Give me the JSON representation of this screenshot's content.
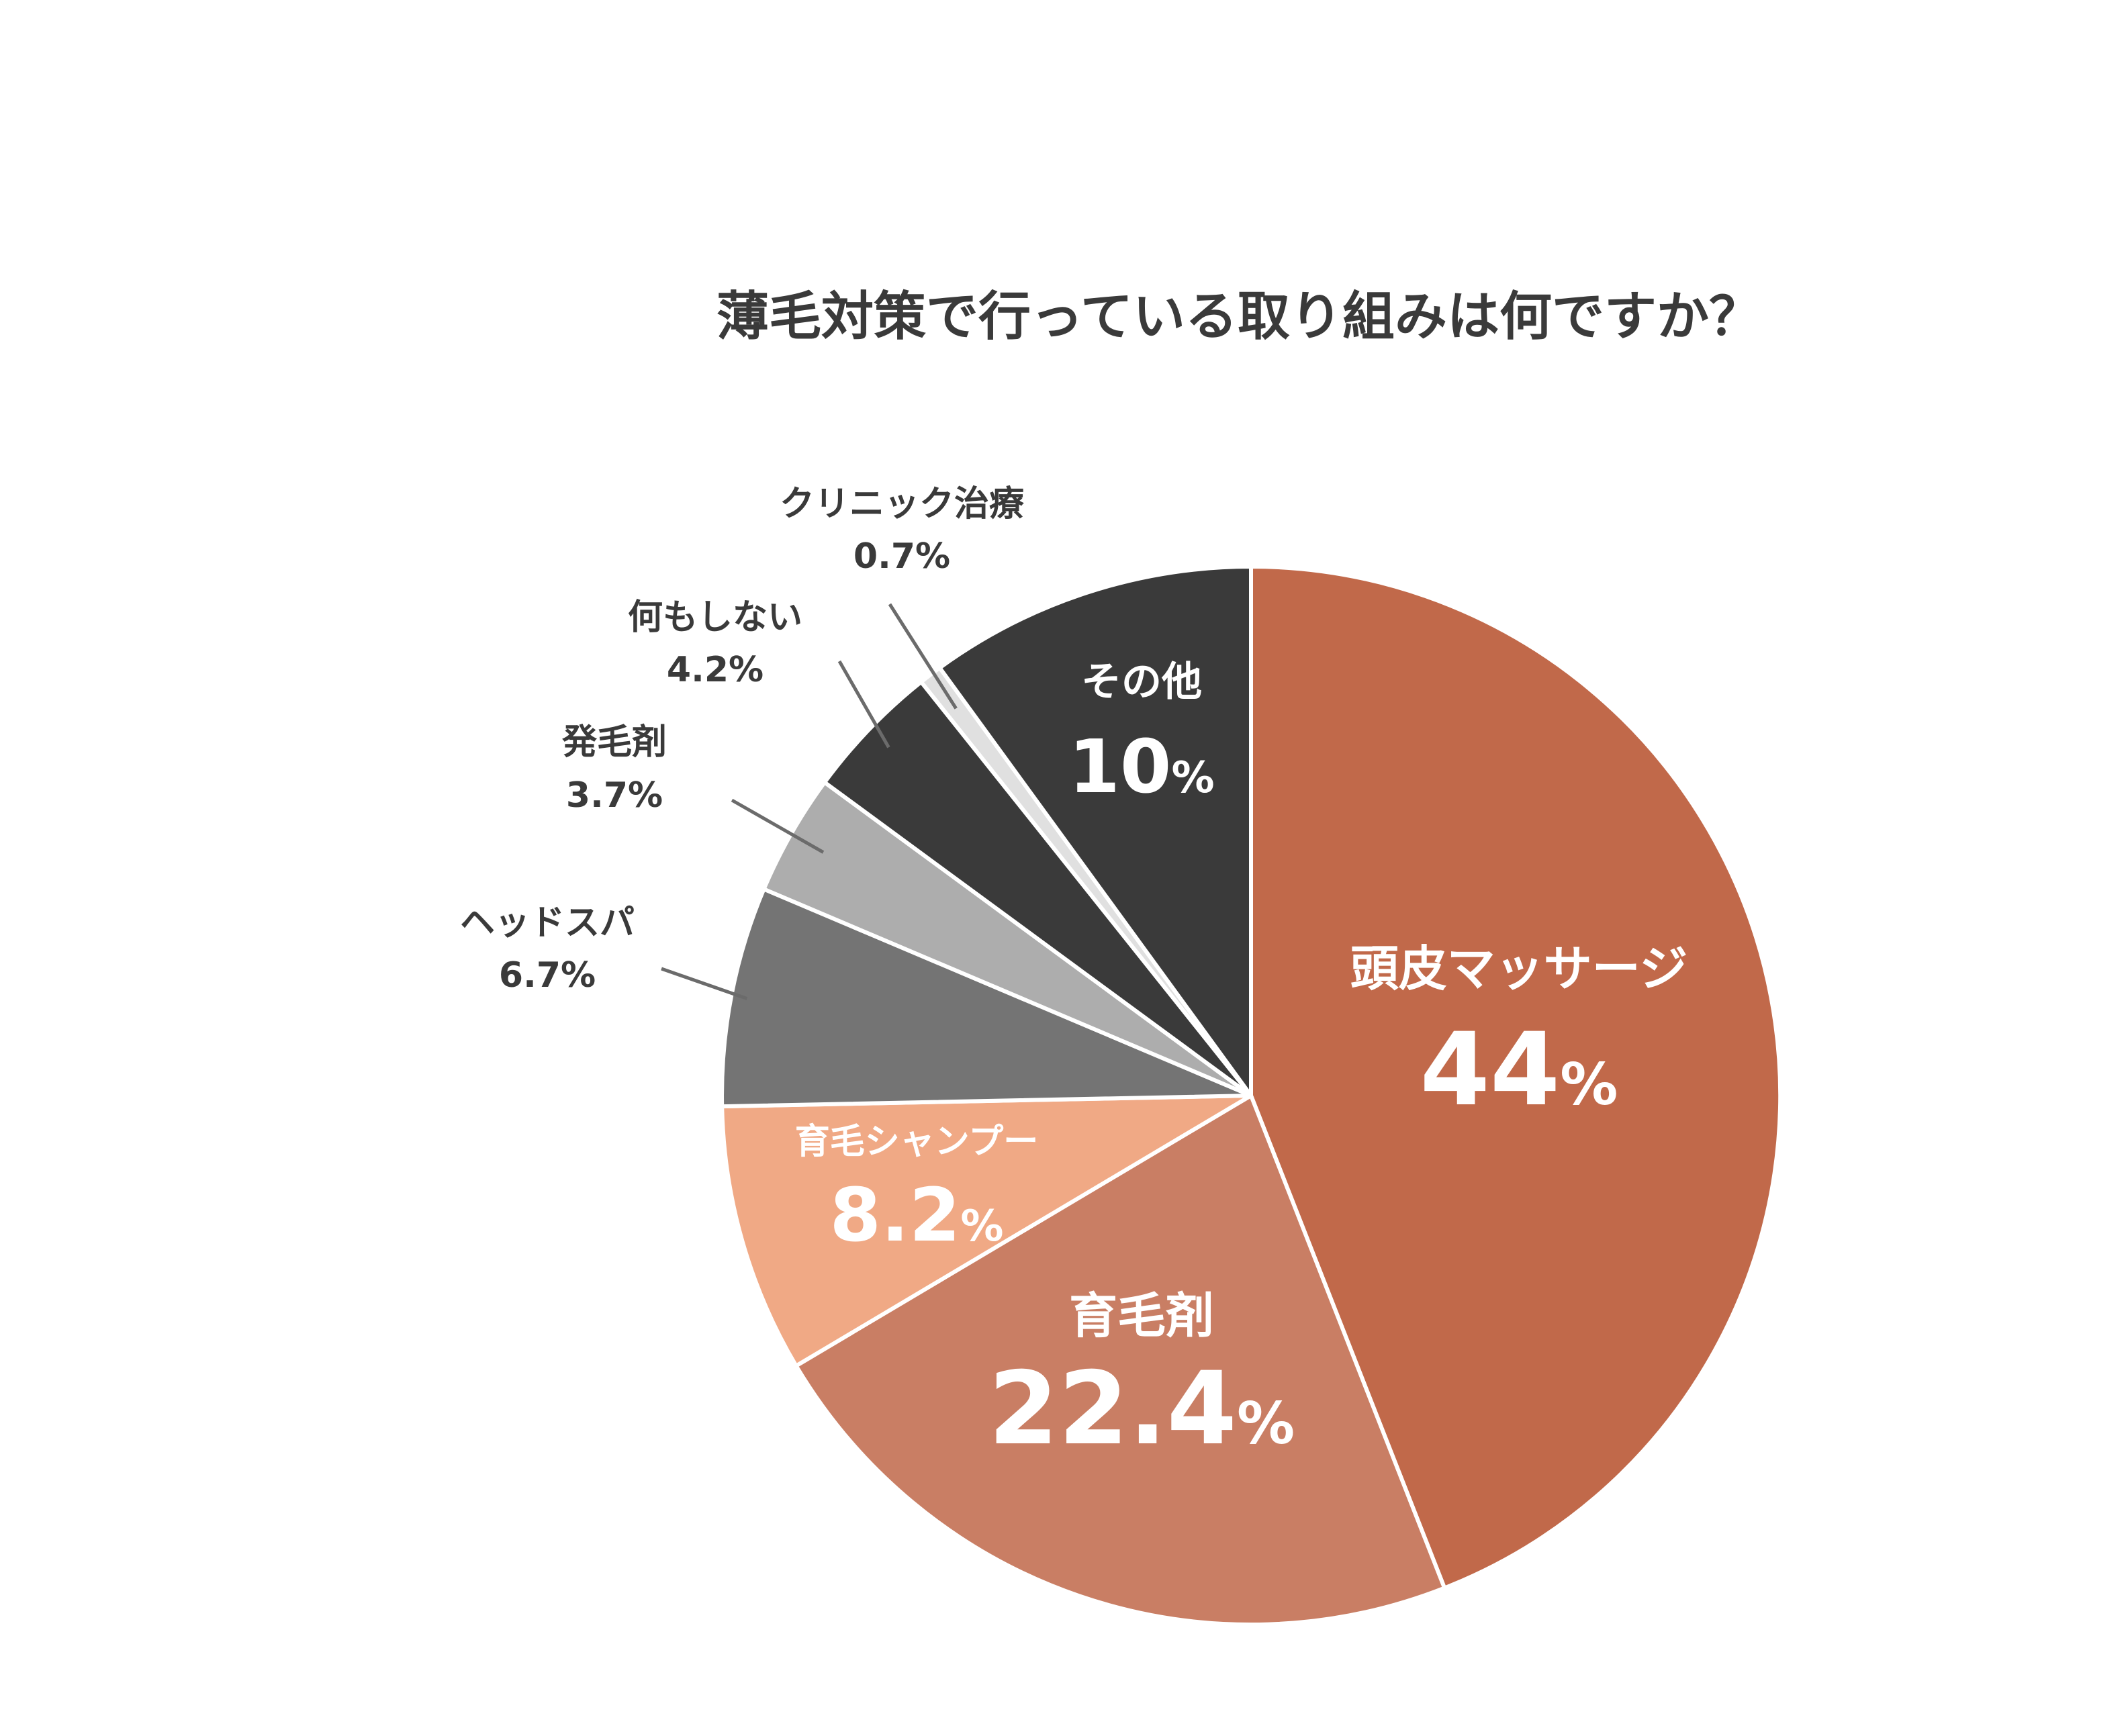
{
  "chart_data": {
    "type": "pie",
    "title": "薄毛対策で行っている取り組みは何ですか？",
    "unit": "%",
    "slices": [
      {
        "label": "頭皮マッサージ",
        "value": 44,
        "display": "44",
        "color": "#c1694a"
      },
      {
        "label": "育毛剤",
        "value": 22.4,
        "display": "22.4",
        "color": "#c97e64"
      },
      {
        "label": "育毛シャンプー",
        "value": 8.2,
        "display": "8.2",
        "color": "#f0a985"
      },
      {
        "label": "ヘッドスパ",
        "value": 6.7,
        "display": "6.7",
        "color": "#747474"
      },
      {
        "label": "発毛剤",
        "value": 3.7,
        "display": "3.7",
        "color": "#adadad"
      },
      {
        "label": "何もしない",
        "value": 4.2,
        "display": "4.2",
        "color": "#3a3a3a"
      },
      {
        "label": "クリニック治療",
        "value": 0.7,
        "display": "0.7",
        "color": "#e0e0e0"
      },
      {
        "label": "その他",
        "value": 10,
        "display": "10",
        "color": "#3a3a3a"
      }
    ]
  }
}
